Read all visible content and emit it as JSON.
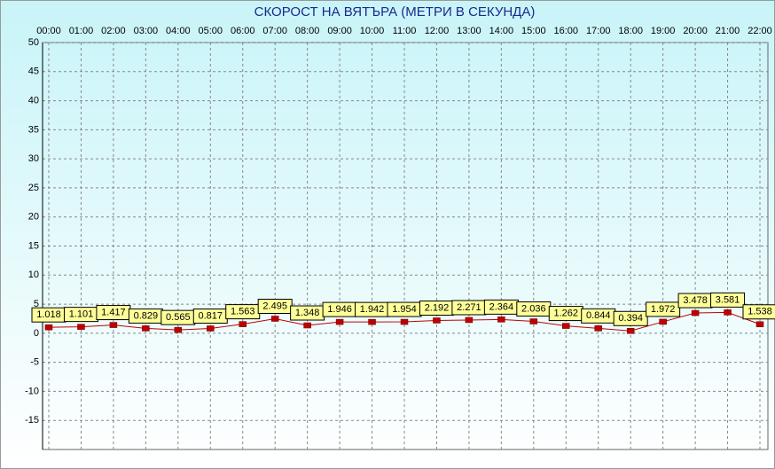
{
  "chart_data": {
    "type": "line",
    "title": "СКОРОСТ НА ВЯТЪРА (МЕТРИ В СЕКУНДА)",
    "categories": [
      "00:00",
      "01:00",
      "02:00",
      "03:00",
      "04:00",
      "05:00",
      "06:00",
      "07:00",
      "08:00",
      "09:00",
      "10:00",
      "11:00",
      "12:00",
      "13:00",
      "14:00",
      "15:00",
      "16:00",
      "17:00",
      "18:00",
      "19:00",
      "20:00",
      "21:00",
      "22:00"
    ],
    "values": [
      1.018,
      1.101,
      1.417,
      0.829,
      0.565,
      0.817,
      1.563,
      2.495,
      1.348,
      1.946,
      1.942,
      1.954,
      2.192,
      2.271,
      2.364,
      2.036,
      1.262,
      0.844,
      0.394,
      1.972,
      3.478,
      3.581,
      1.538
    ],
    "color": "#c00000",
    "ylim": [
      -20,
      50
    ],
    "yticks": [
      -15,
      -10,
      -5,
      0,
      5,
      10,
      15,
      20,
      25,
      30,
      35,
      40,
      45,
      50
    ],
    "grid": true
  }
}
